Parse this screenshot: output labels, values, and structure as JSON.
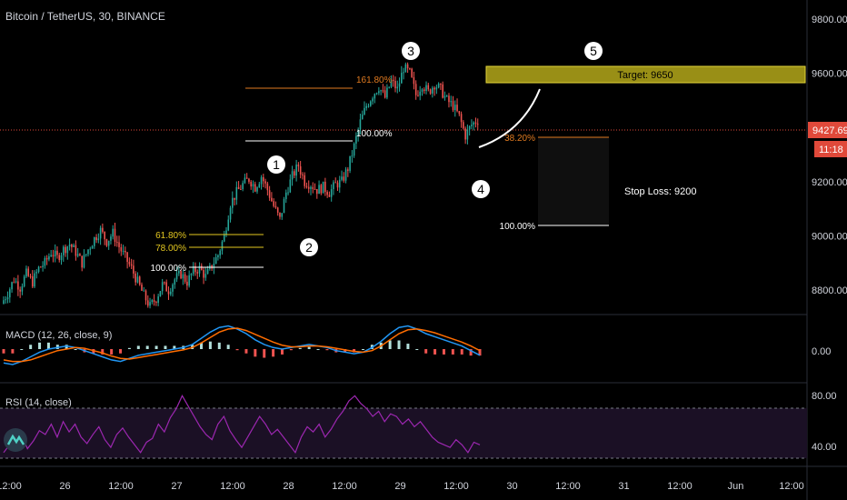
{
  "chart_data": {
    "type": "candlestick",
    "title": "Bitcoin / TetherUS, 30, BINANCE",
    "price_axis": {
      "ticks": [
        "9800.00",
        "9600.00",
        "9400.00",
        "9200.00",
        "9000.00",
        "8800.00"
      ],
      "tick_values": [
        9800,
        9600,
        9400,
        9200,
        9000,
        8800
      ],
      "last_price": "9427.69",
      "countdown": "11:18",
      "ylim": [
        8710,
        9870
      ]
    },
    "time_axis": {
      "ticks": [
        "12:00",
        "26",
        "12:00",
        "27",
        "12:00",
        "28",
        "12:00",
        "29",
        "12:00",
        "30",
        "12:00",
        "31",
        "12:00",
        "Jun",
        "12:00"
      ]
    },
    "price_path": [
      8750,
      8790,
      8840,
      8810,
      8860,
      8830,
      8880,
      8900,
      8940,
      8920,
      8950,
      8970,
      8940,
      8900,
      8950,
      8990,
      9020,
      8980,
      9010,
      8960,
      8920,
      8880,
      8830,
      8780,
      8740,
      8770,
      8820,
      8800,
      8840,
      8860,
      8830,
      8870,
      8880,
      8850,
      8890,
      8930,
      9000,
      9120,
      9160,
      9190,
      9210,
      9180,
      9220,
      9170,
      9110,
      9060,
      9160,
      9220,
      9260,
      9200,
      9190,
      9170,
      9180,
      9160,
      9190,
      9200,
      9250,
      9330,
      9420,
      9480,
      9520,
      9550,
      9510,
      9570,
      9540,
      9620,
      9600,
      9520,
      9560,
      9530,
      9560,
      9540,
      9500,
      9480,
      9440,
      9370,
      9410,
      9427.69
    ],
    "price_ylim": [
      8710,
      9870
    ],
    "waves": [
      "1",
      "2",
      "3",
      "4",
      "5"
    ],
    "fib_left": [
      "61.80%",
      "78.00%",
      "100.00%"
    ],
    "fib_mid": [
      "161.80%",
      "100.00%"
    ],
    "fib_right": [
      "38.20%",
      "100.00%"
    ],
    "target_label": "Target: 9650",
    "stop_label": "Stop Loss: 9200",
    "macd": {
      "label": "MACD (12, 26, close, 9)",
      "tick": "0.00",
      "ylim": [
        -40,
        40
      ],
      "macd_line": [
        -18,
        -20,
        -16,
        -10,
        -4,
        0,
        2,
        4,
        2,
        -2,
        -6,
        -10,
        -14,
        -16,
        -12,
        -8,
        -6,
        -4,
        -2,
        0,
        2,
        6,
        14,
        22,
        28,
        30,
        26,
        20,
        12,
        6,
        2,
        0,
        2,
        4,
        6,
        4,
        2,
        -2,
        -4,
        -6,
        -4,
        2,
        10,
        20,
        28,
        30,
        26,
        20,
        16,
        12,
        8,
        4,
        -2,
        -8
      ],
      "signal_line": [
        -14,
        -16,
        -16,
        -14,
        -10,
        -6,
        -2,
        0,
        2,
        1,
        -2,
        -5,
        -9,
        -12,
        -13,
        -11,
        -9,
        -7,
        -5,
        -3,
        -1,
        2,
        8,
        15,
        22,
        26,
        27,
        24,
        19,
        14,
        9,
        5,
        3,
        3,
        4,
        4,
        3,
        1,
        -1,
        -3,
        -4,
        -2,
        4,
        12,
        20,
        25,
        26,
        24,
        21,
        17,
        13,
        9,
        4,
        -2
      ]
    },
    "rsi": {
      "label": "RSI (14, close)",
      "ticks": [
        "80.00",
        "40.00"
      ],
      "tick_values": [
        80,
        40
      ],
      "ylim": [
        28,
        90
      ],
      "band": [
        70,
        30
      ],
      "values": [
        38,
        44,
        49,
        52,
        41,
        47,
        55,
        52,
        60,
        50,
        62,
        54,
        60,
        50,
        45,
        52,
        58,
        48,
        42,
        52,
        57,
        50,
        44,
        38,
        46,
        49,
        60,
        54,
        65,
        72,
        82,
        74,
        66,
        58,
        52,
        48,
        60,
        66,
        55,
        48,
        42,
        50,
        58,
        66,
        60,
        52,
        56,
        50,
        44,
        38,
        50,
        58,
        54,
        60,
        50,
        56,
        64,
        70,
        78,
        82,
        76,
        72,
        66,
        70,
        62,
        68,
        66,
        60,
        64,
        58,
        62,
        56,
        50,
        46,
        44,
        42,
        48,
        44,
        38,
        46,
        44
      ]
    }
  }
}
